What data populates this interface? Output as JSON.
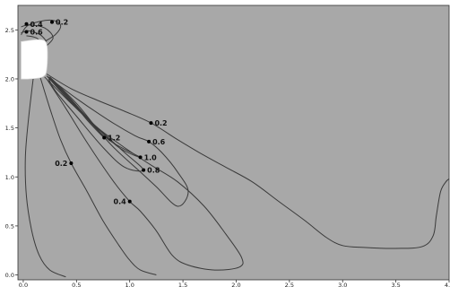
{
  "chart_data": {
    "type": "contour",
    "title": "",
    "xlabel": "",
    "ylabel": "",
    "xlim": [
      -0.05,
      4.0
    ],
    "ylim": [
      -0.05,
      2.75
    ],
    "grid": false,
    "legend": "none",
    "colors": {
      "background": "#a8a8a8",
      "contour_line": "#3a3a3a",
      "obstacle": "#ffffff",
      "marker": "#000000"
    },
    "x_ticks": [
      {
        "value": 0.0,
        "label": "0.0"
      },
      {
        "value": 0.5,
        "label": "0.5"
      },
      {
        "value": 1.0,
        "label": "1.0"
      },
      {
        "value": 1.5,
        "label": "1.5"
      },
      {
        "value": 2.0,
        "label": "2.0"
      },
      {
        "value": 2.5,
        "label": "2.5"
      },
      {
        "value": 3.0,
        "label": "3.0"
      },
      {
        "value": 3.5,
        "label": "3.5"
      },
      {
        "value": 4.0,
        "label": "4.0"
      }
    ],
    "y_ticks": [
      {
        "value": 0.0,
        "label": "0.0"
      },
      {
        "value": 0.5,
        "label": "0.5"
      },
      {
        "value": 1.0,
        "label": "1.0"
      },
      {
        "value": 1.5,
        "label": "1.5"
      },
      {
        "value": 2.0,
        "label": "2.0"
      },
      {
        "value": 2.5,
        "label": "2.5"
      }
    ],
    "labels": [
      {
        "text": "0.4",
        "x": 0.03,
        "y": 2.56
      },
      {
        "text": "0.2",
        "x": 0.27,
        "y": 2.58
      },
      {
        "text": "0.6",
        "x": 0.03,
        "y": 2.48
      },
      {
        "text": "0.2",
        "x": 1.2,
        "y": 1.55
      },
      {
        "text": "0.6",
        "x": 1.18,
        "y": 1.36
      },
      {
        "text": "1.2",
        "x": 0.76,
        "y": 1.4
      },
      {
        "text": "1.0",
        "x": 1.1,
        "y": 1.2
      },
      {
        "text": "0.8",
        "x": 1.13,
        "y": 1.07
      },
      {
        "text": "0.2",
        "x": 0.45,
        "y": 1.14
      },
      {
        "text": "0.4",
        "x": 1.0,
        "y": 0.75
      }
    ],
    "contours": [
      {
        "level": 0.2,
        "points": [
          [
            0.22,
            2.05
          ],
          [
            0.45,
            1.9
          ],
          [
            0.7,
            1.78
          ],
          [
            0.95,
            1.67
          ],
          [
            1.2,
            1.55
          ],
          [
            1.45,
            1.38
          ],
          [
            1.65,
            1.25
          ],
          [
            1.9,
            1.1
          ],
          [
            2.15,
            0.95
          ],
          [
            2.4,
            0.75
          ],
          [
            2.65,
            0.55
          ],
          [
            2.85,
            0.38
          ],
          [
            3.0,
            0.3
          ],
          [
            3.2,
            0.28
          ],
          [
            3.5,
            0.27
          ],
          [
            3.75,
            0.29
          ],
          [
            3.85,
            0.4
          ],
          [
            3.88,
            0.6
          ],
          [
            3.92,
            0.85
          ],
          [
            3.97,
            0.95
          ],
          [
            4.0,
            0.98
          ]
        ]
      },
      {
        "level": 0.2,
        "points": [
          [
            0.15,
            2.05
          ],
          [
            0.25,
            1.7
          ],
          [
            0.35,
            1.38
          ],
          [
            0.45,
            1.14
          ],
          [
            0.6,
            0.85
          ],
          [
            0.75,
            0.55
          ],
          [
            0.9,
            0.3
          ],
          [
            1.0,
            0.15
          ],
          [
            1.1,
            0.05
          ],
          [
            1.25,
            0.0
          ]
        ]
      },
      {
        "level": 0.2,
        "points": [
          [
            0.1,
            2.06
          ],
          [
            0.05,
            1.6
          ],
          [
            0.02,
            1.2
          ],
          [
            0.03,
            0.8
          ],
          [
            0.08,
            0.45
          ],
          [
            0.15,
            0.2
          ],
          [
            0.25,
            0.05
          ],
          [
            0.4,
            -0.02
          ]
        ]
      },
      {
        "level": 0.4,
        "points": [
          [
            0.2,
            2.02
          ],
          [
            0.45,
            1.75
          ],
          [
            0.7,
            1.5
          ],
          [
            0.95,
            1.3
          ],
          [
            1.2,
            1.12
          ],
          [
            1.45,
            0.95
          ],
          [
            1.7,
            0.7
          ],
          [
            1.9,
            0.42
          ],
          [
            2.05,
            0.18
          ],
          [
            2.03,
            0.08
          ],
          [
            1.8,
            0.05
          ],
          [
            1.55,
            0.1
          ],
          [
            1.4,
            0.2
          ],
          [
            1.25,
            0.45
          ],
          [
            1.1,
            0.65
          ],
          [
            1.0,
            0.75
          ],
          [
            0.85,
            0.95
          ],
          [
            0.6,
            1.35
          ],
          [
            0.4,
            1.7
          ],
          [
            0.22,
            2.0
          ]
        ]
      },
      {
        "level": 0.6,
        "points": [
          [
            0.22,
            2.03
          ],
          [
            0.5,
            1.8
          ],
          [
            0.8,
            1.58
          ],
          [
            1.05,
            1.42
          ],
          [
            1.18,
            1.36
          ],
          [
            1.3,
            1.25
          ],
          [
            1.45,
            1.05
          ],
          [
            1.55,
            0.85
          ],
          [
            1.45,
            0.7
          ],
          [
            1.25,
            0.9
          ],
          [
            1.1,
            1.05
          ],
          [
            0.85,
            1.3
          ],
          [
            0.6,
            1.6
          ],
          [
            0.35,
            1.9
          ],
          [
            0.24,
            2.01
          ]
        ]
      },
      {
        "level": 0.8,
        "points": [
          [
            0.23,
            2.02
          ],
          [
            0.5,
            1.7
          ],
          [
            0.75,
            1.45
          ],
          [
            0.95,
            1.25
          ],
          [
            1.13,
            1.07
          ],
          [
            0.95,
            1.1
          ],
          [
            0.75,
            1.3
          ],
          [
            0.5,
            1.62
          ],
          [
            0.3,
            1.88
          ],
          [
            0.24,
            2.0
          ]
        ]
      },
      {
        "level": 1.0,
        "points": [
          [
            0.24,
            2.02
          ],
          [
            0.55,
            1.65
          ],
          [
            0.8,
            1.38
          ],
          [
            1.1,
            1.2
          ],
          [
            0.9,
            1.3
          ],
          [
            0.65,
            1.55
          ],
          [
            0.4,
            1.85
          ],
          [
            0.25,
            2.0
          ]
        ]
      },
      {
        "level": 1.2,
        "points": [
          [
            0.25,
            2.02
          ],
          [
            0.5,
            1.75
          ],
          [
            0.65,
            1.55
          ],
          [
            0.76,
            1.4
          ],
          [
            0.6,
            1.58
          ],
          [
            0.45,
            1.78
          ],
          [
            0.28,
            1.98
          ]
        ]
      },
      {
        "level": 0.2,
        "points": [
          [
            0.15,
            2.35
          ],
          [
            0.3,
            2.45
          ],
          [
            0.35,
            2.55
          ],
          [
            0.25,
            2.6
          ],
          [
            0.05,
            2.55
          ],
          [
            -0.02,
            2.45
          ]
        ]
      },
      {
        "level": 0.4,
        "points": [
          [
            -0.02,
            2.53
          ],
          [
            0.05,
            2.55
          ],
          [
            0.2,
            2.52
          ],
          [
            0.28,
            2.42
          ],
          [
            0.2,
            2.32
          ]
        ]
      },
      {
        "level": 0.6,
        "points": [
          [
            -0.02,
            2.47
          ],
          [
            0.05,
            2.49
          ],
          [
            0.16,
            2.45
          ],
          [
            0.22,
            2.38
          ]
        ]
      },
      {
        "level": 0.8,
        "points": [
          [
            0.03,
            2.44
          ],
          [
            0.12,
            2.42
          ],
          [
            0.18,
            2.36
          ]
        ]
      }
    ],
    "obstacle": [
      [
        -0.02,
        2.38
      ],
      [
        0.15,
        2.4
      ],
      [
        0.22,
        2.35
      ],
      [
        0.22,
        2.1
      ],
      [
        0.18,
        2.02
      ],
      [
        0.05,
        2.0
      ],
      [
        -0.02,
        2.0
      ]
    ]
  }
}
